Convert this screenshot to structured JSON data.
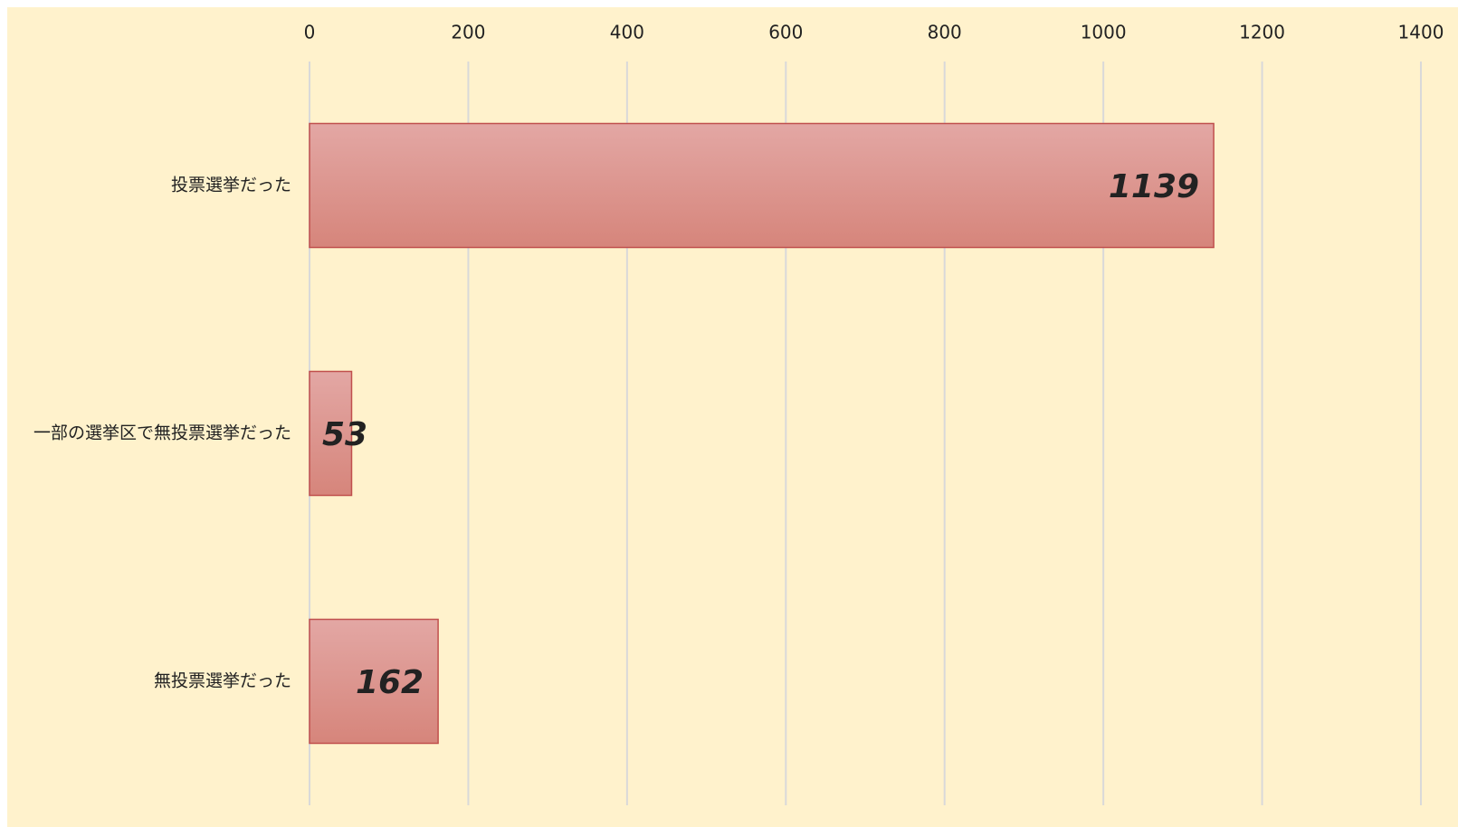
{
  "chart_data": {
    "type": "bar",
    "orientation": "horizontal",
    "categories": [
      "投票選挙だった",
      "一部の選挙区で無投票選挙だった",
      "無投票選挙だった"
    ],
    "values": [
      1139,
      53,
      162
    ],
    "color": "#d98c84",
    "xlim": [
      0,
      1400
    ],
    "xticks": [
      0,
      200,
      400,
      600,
      800,
      1000,
      1200,
      1400
    ],
    "grid": true
  }
}
